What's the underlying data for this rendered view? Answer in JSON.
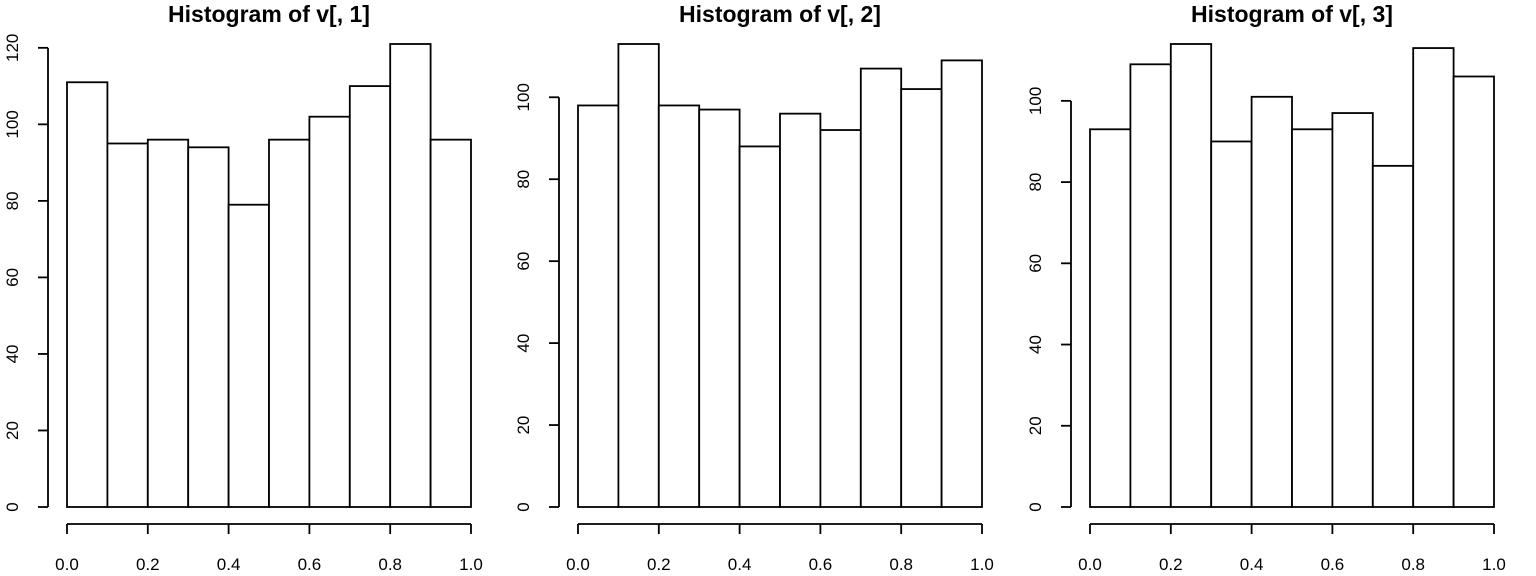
{
  "chart_data": [
    {
      "type": "bar",
      "title": "Histogram of v[, 1]",
      "xlabel": "",
      "ylabel": "",
      "bin_edges": [
        0.0,
        0.1,
        0.2,
        0.3,
        0.4,
        0.5,
        0.6,
        0.7,
        0.8,
        0.9,
        1.0
      ],
      "values": [
        111,
        95,
        96,
        94,
        79,
        96,
        102,
        110,
        121,
        96
      ],
      "ylim": [
        0,
        121
      ],
      "x_ticks": [
        "0.0",
        "0.2",
        "0.4",
        "0.6",
        "0.8",
        "1.0"
      ],
      "y_ticks": [
        "0",
        "20",
        "40",
        "60",
        "80",
        "100",
        "120"
      ],
      "grid": false
    },
    {
      "type": "bar",
      "title": "Histogram of v[, 2]",
      "xlabel": "",
      "ylabel": "",
      "bin_edges": [
        0.0,
        0.1,
        0.2,
        0.3,
        0.4,
        0.5,
        0.6,
        0.7,
        0.8,
        0.9,
        1.0
      ],
      "values": [
        98,
        113,
        98,
        97,
        88,
        96,
        92,
        107,
        102,
        109
      ],
      "ylim": [
        0,
        113
      ],
      "x_ticks": [
        "0.0",
        "0.2",
        "0.4",
        "0.6",
        "0.8",
        "1.0"
      ],
      "y_ticks": [
        "0",
        "20",
        "40",
        "60",
        "80",
        "100"
      ],
      "grid": false
    },
    {
      "type": "bar",
      "title": "Histogram of v[, 3]",
      "xlabel": "",
      "ylabel": "",
      "bin_edges": [
        0.0,
        0.1,
        0.2,
        0.3,
        0.4,
        0.5,
        0.6,
        0.7,
        0.8,
        0.9,
        1.0
      ],
      "values": [
        93,
        109,
        114,
        90,
        101,
        93,
        97,
        84,
        113,
        106
      ],
      "ylim": [
        0,
        114
      ],
      "x_ticks": [
        "0.0",
        "0.2",
        "0.4",
        "0.6",
        "0.8",
        "1.0"
      ],
      "y_ticks": [
        "0",
        "20",
        "40",
        "60",
        "80",
        "100"
      ],
      "grid": false
    }
  ]
}
